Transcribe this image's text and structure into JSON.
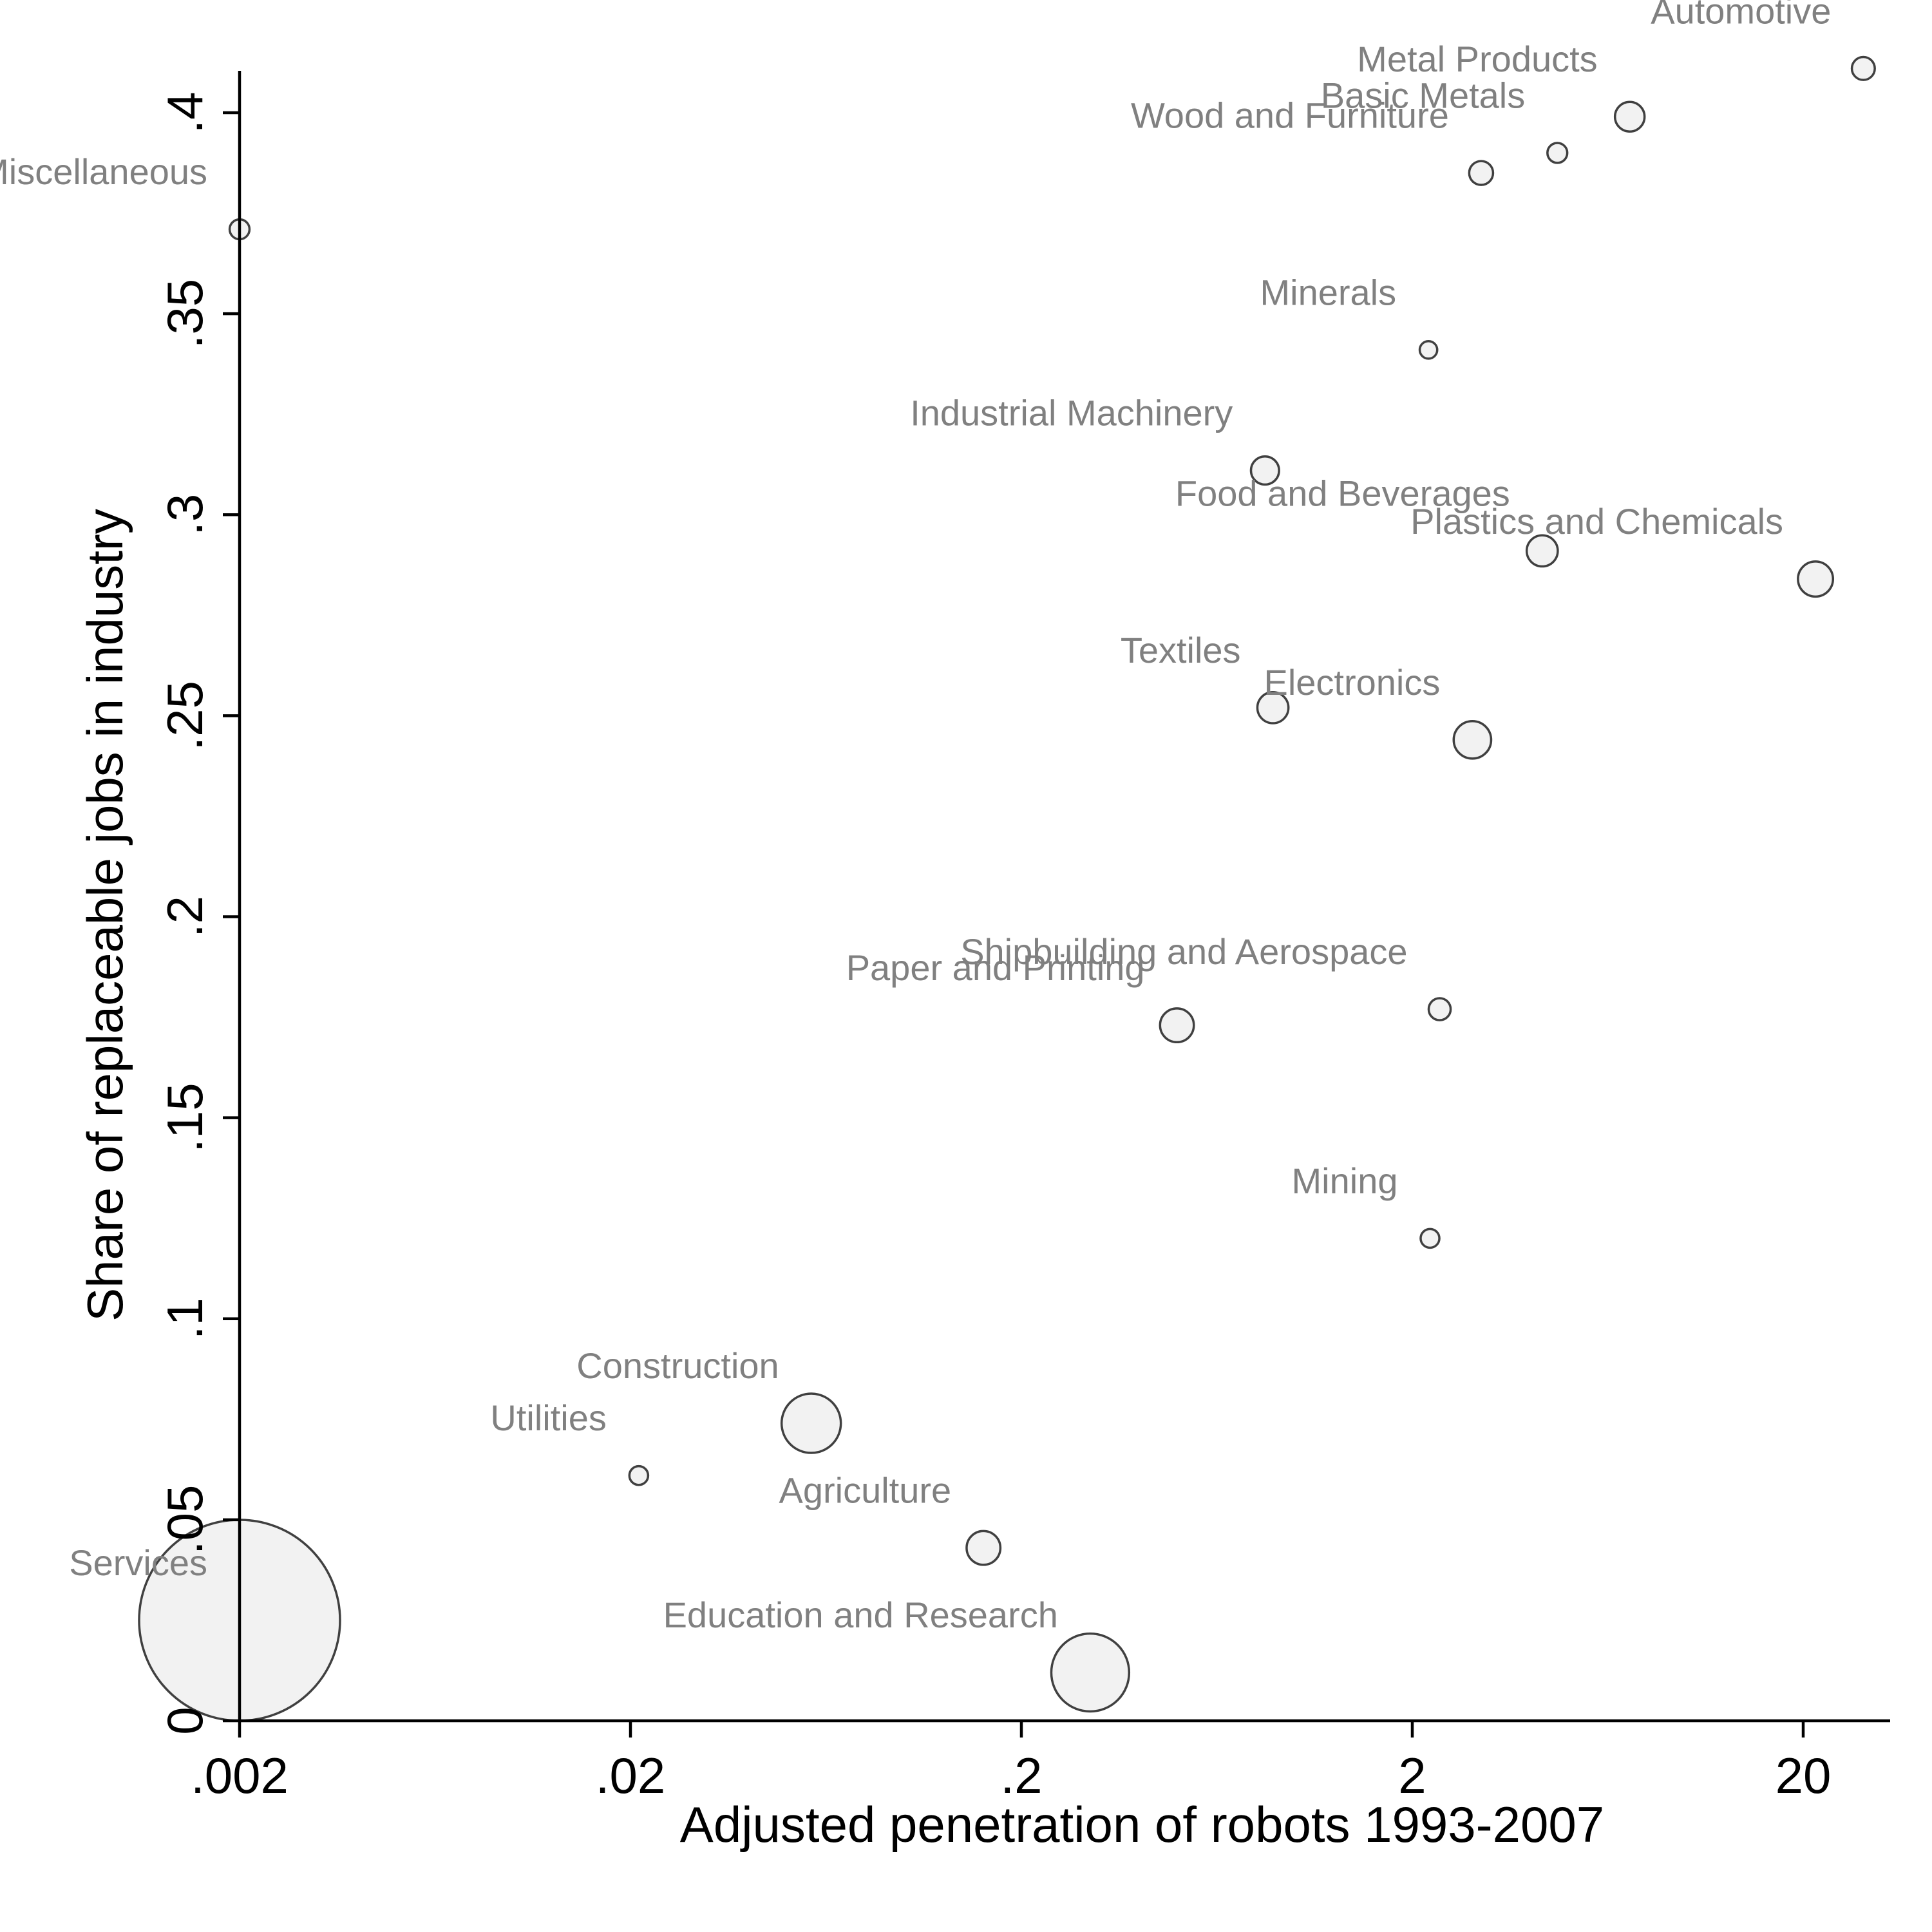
{
  "chart_data": {
    "type": "scatter",
    "title": "",
    "xlabel": "Adjusted penetration of robots 1993-2007",
    "ylabel": "Share of replaceable jobs in industry",
    "x_scale": "log",
    "xlim": [
      0.0018,
      29
    ],
    "ylim": [
      0,
      0.41
    ],
    "x_ticks": [
      0.002,
      0.02,
      0.2,
      2,
      20
    ],
    "x_tick_labels": [
      ".002",
      ".02",
      ".2",
      "2",
      "20"
    ],
    "y_ticks": [
      0,
      0.05,
      0.1,
      0.15,
      0.2,
      0.25,
      0.3,
      0.35,
      0.4
    ],
    "y_tick_labels": [
      "0",
      ".05",
      ".1",
      ".15",
      ".2",
      ".25",
      ".3",
      ".35",
      ".4"
    ],
    "grid": false,
    "legend": "none",
    "marker_fill": "#f2f2f2",
    "marker_stroke": "#404040",
    "label_color": "#808080",
    "size_note": "marker area proportional to industry weight",
    "points": [
      {
        "label": "Automotive",
        "x": 28.5,
        "y": 0.411,
        "size": 0.6,
        "label_pos": "above-left"
      },
      {
        "label": "Metal Products",
        "x": 7.2,
        "y": 0.399,
        "size": 1.0,
        "label_pos": "above-left"
      },
      {
        "label": "Basic Metals",
        "x": 4.7,
        "y": 0.39,
        "size": 0.45,
        "label_pos": "above-left"
      },
      {
        "label": "Wood and Furniture",
        "x": 3.0,
        "y": 0.385,
        "size": 0.65,
        "label_pos": "above-left"
      },
      {
        "label": "Miscellaneous",
        "x": 0.002,
        "y": 0.371,
        "size": 0.45,
        "label_pos": "above-left"
      },
      {
        "label": "Minerals",
        "x": 2.2,
        "y": 0.341,
        "size": 0.35,
        "label_pos": "above-left"
      },
      {
        "label": "Industrial Machinery",
        "x": 0.84,
        "y": 0.311,
        "size": 0.9,
        "label_pos": "above-left"
      },
      {
        "label": "Food and Beverages",
        "x": 4.3,
        "y": 0.291,
        "size": 1.1,
        "label_pos": "above-left"
      },
      {
        "label": "Plastics and Chemicals",
        "x": 21.5,
        "y": 0.284,
        "size": 1.4,
        "label_pos": "above-left"
      },
      {
        "label": "Textiles",
        "x": 0.88,
        "y": 0.252,
        "size": 1.1,
        "label_pos": "above-left"
      },
      {
        "label": "Electronics",
        "x": 2.85,
        "y": 0.244,
        "size": 1.6,
        "label_pos": "above-left"
      },
      {
        "label": "Shipbuilding and Aerospace",
        "x": 2.35,
        "y": 0.177,
        "size": 0.55,
        "label_pos": "above-left"
      },
      {
        "label": "Paper and Printing",
        "x": 0.5,
        "y": 0.173,
        "size": 1.3,
        "label_pos": "above-left"
      },
      {
        "label": "Mining",
        "x": 2.22,
        "y": 0.12,
        "size": 0.4,
        "label_pos": "above-left"
      },
      {
        "label": "Construction",
        "x": 0.058,
        "y": 0.074,
        "size": 4.0,
        "label_pos": "above-left"
      },
      {
        "label": "Utilities",
        "x": 0.021,
        "y": 0.061,
        "size": 0.4,
        "label_pos": "above-left"
      },
      {
        "label": "Agriculture",
        "x": 0.16,
        "y": 0.043,
        "size": 1.3,
        "label_pos": "above-left"
      },
      {
        "label": "Education and Research",
        "x": 0.3,
        "y": 0.012,
        "size": 6.9,
        "label_pos": "above-left"
      },
      {
        "label": "Services",
        "x": 0.002,
        "y": 0.025,
        "size": 46.0,
        "label_pos": "above-left"
      }
    ]
  }
}
